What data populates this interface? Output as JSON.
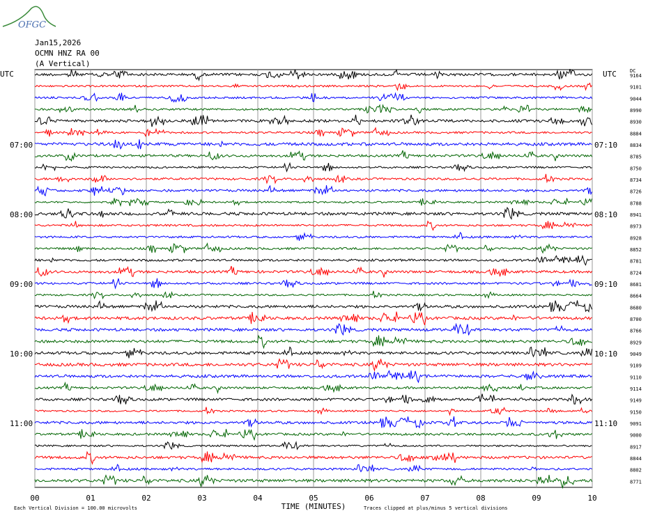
{
  "header": {
    "logo": "OFGC",
    "date": "Jan15,2026",
    "station": "OCMN HNZ RA 00",
    "component": "(A Vertical)",
    "utc_left": "UTC",
    "utc_right": "UTC",
    "dc": "DC"
  },
  "left_time_labels": [
    "07:00",
    "08:00",
    "09:00",
    "10:00",
    "11:00"
  ],
  "right_time_labels": [
    "07:10",
    "08:10",
    "09:10",
    "10:10",
    "11:10"
  ],
  "dc_values": [
    9164,
    9101,
    9044,
    8990,
    8930,
    8884,
    8834,
    8785,
    8750,
    8734,
    8726,
    8788,
    8941,
    8973,
    8928,
    8852,
    8781,
    8724,
    8681,
    8664,
    8680,
    8700,
    8766,
    8929,
    9049,
    9109,
    9110,
    9114,
    9149,
    9150,
    9091,
    9000,
    8917,
    8844,
    8802,
    8771
  ],
  "trace_colors": [
    "#000000",
    "#ff0000",
    "#0000ff",
    "#006400"
  ],
  "x_tick_labels": [
    "00",
    "01",
    "02",
    "03",
    "04",
    "05",
    "06",
    "07",
    "08",
    "09",
    "10"
  ],
  "x_axis_title": "TIME (MINUTES)",
  "footer": {
    "scale_note": "Each Vertical Division =  100.00 microvolts",
    "clip_note": "Traces clipped at plus/minus 5 vertical divisions"
  }
}
